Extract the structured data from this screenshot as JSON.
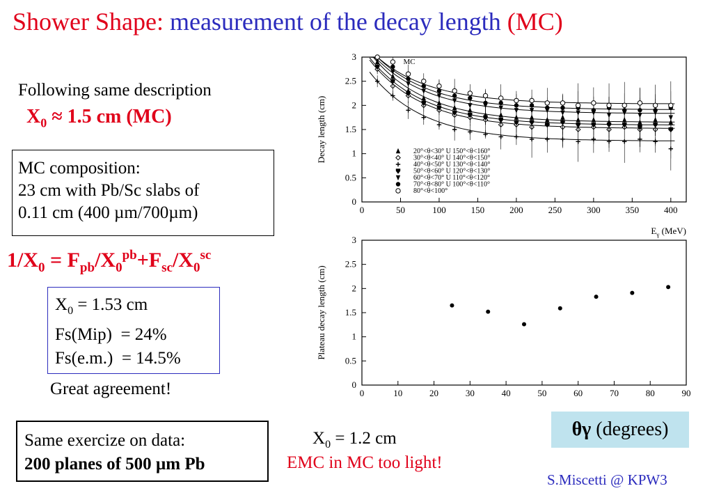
{
  "title": {
    "part1": "Shower Shape:",
    "part2": "measurement of the decay length",
    "part3": "(MC)"
  },
  "description": {
    "line1": "Following same description",
    "result_base": "X",
    "result_sub": "0",
    "result_rest": " ≈ 1.5 cm (MC)"
  },
  "composition": {
    "line1": "MC composition:",
    "line2": "23 cm with Pb/Sc slabs of",
    "line3": "0.11 cm (400 µm/700µm)"
  },
  "formula": {
    "a": "1/X",
    "a_sub": "0",
    "b": " = F",
    "b_sub": "pb",
    "c": "/X",
    "c_sub": "0",
    "c_sup": "pb",
    "d": "+F",
    "d_sub": "sc",
    "e": "/X",
    "e_sub": "0",
    "e_sup": "sc"
  },
  "values": {
    "x0_base": "X",
    "x0_sub": "0",
    "x0_rest": " = 1.53 cm",
    "fs_mip": "Fs(Mip)  = 24%",
    "fs_em": "Fs(e.m.)  = 14.5%"
  },
  "agreement": "Great agreement!",
  "data_box": {
    "line1": "Same exercize on data:",
    "line2": "200 planes of 500 µm Pb"
  },
  "data_result": {
    "x0_base": "X",
    "x0_sub": "0",
    "x0_rest": " = 1.2 cm",
    "emc": "EMC in MC too light!"
  },
  "theta_label": {
    "symbol": "θγ",
    "text": " (degrees)"
  },
  "credit": "S.Miscetti @ KPW3",
  "chart_data": [
    {
      "type": "scatter",
      "xlabel": "E",
      "xlabel_sub": "γ",
      "xlabel_unit": " (MeV)",
      "ylabel": "Decay length (cm)",
      "corner_label": "MC",
      "xlim": [
        0,
        420
      ],
      "ylim": [
        0,
        3
      ],
      "xticks": [
        0,
        50,
        100,
        150,
        200,
        250,
        300,
        350,
        400
      ],
      "yticks": [
        0,
        0.5,
        1,
        1.5,
        2,
        2.5,
        3
      ],
      "legend_position": "bottom-left",
      "x": [
        20,
        40,
        60,
        80,
        100,
        120,
        140,
        160,
        180,
        200,
        220,
        240,
        260,
        280,
        300,
        320,
        340,
        360,
        380,
        400
      ],
      "series": [
        {
          "name": "20°<θ<30° U 150°<θ<160°",
          "plateau": 1.65,
          "marker": "triangle-up",
          "values": [
            2.9,
            2.6,
            2.3,
            2.15,
            2.05,
            1.95,
            1.9,
            1.8,
            1.8,
            1.75,
            1.75,
            1.7,
            1.75,
            1.7,
            1.7,
            1.65,
            1.7,
            1.65,
            1.7,
            1.65
          ]
        },
        {
          "name": "30°<θ<40° U 140°<θ<150°",
          "plateau": 1.52,
          "marker": "diamond-open",
          "values": [
            2.75,
            2.4,
            2.2,
            2.0,
            1.9,
            1.8,
            1.75,
            1.7,
            1.6,
            1.6,
            1.55,
            1.6,
            1.55,
            1.5,
            1.55,
            1.5,
            1.55,
            1.5,
            1.5,
            1.5
          ]
        },
        {
          "name": "40°<θ<50° U 130°<θ<140°",
          "plateau": 1.26,
          "marker": "cross",
          "values": [
            2.5,
            2.2,
            1.9,
            1.75,
            1.6,
            1.5,
            1.45,
            1.4,
            1.35,
            1.35,
            1.3,
            1.3,
            1.3,
            1.25,
            1.3,
            1.25,
            1.25,
            1.3,
            1.25,
            1.1
          ]
        },
        {
          "name": "50°<θ<60° U 120°<θ<130°",
          "plateau": 1.59,
          "marker": "shield",
          "values": [
            2.8,
            2.5,
            2.25,
            2.05,
            1.95,
            1.85,
            1.8,
            1.75,
            1.7,
            1.65,
            1.65,
            1.6,
            1.65,
            1.6,
            1.6,
            1.6,
            1.6,
            1.55,
            1.6,
            1.5
          ]
        },
        {
          "name": "60°<θ<70° U 110°<θ<120°",
          "plateau": 1.83,
          "marker": "triangle-down",
          "values": [
            2.95,
            2.7,
            2.45,
            2.3,
            2.2,
            2.1,
            2.0,
            2.0,
            1.95,
            1.9,
            1.9,
            1.9,
            1.85,
            1.85,
            1.85,
            1.8,
            1.85,
            1.8,
            1.85,
            1.75
          ]
        },
        {
          "name": "70°<θ<80° U 100°<θ<110°",
          "plateau": 1.91,
          "marker": "circle",
          "values": [
            3.0,
            2.8,
            2.55,
            2.4,
            2.3,
            2.2,
            2.15,
            2.05,
            2.05,
            2.0,
            2.0,
            1.95,
            1.95,
            1.95,
            1.9,
            1.95,
            1.9,
            1.9,
            1.9,
            1.95
          ]
        },
        {
          "name": "80°<θ<100°",
          "plateau": 2.03,
          "marker": "circle-open",
          "values": [
            3.0,
            2.9,
            2.65,
            2.5,
            2.4,
            2.3,
            2.25,
            2.2,
            2.15,
            2.1,
            2.1,
            2.05,
            2.05,
            2.0,
            2.05,
            2.0,
            2.0,
            2.05,
            2.0,
            2.0
          ]
        }
      ]
    },
    {
      "type": "scatter",
      "ylabel": "Plateau decay length (cm)",
      "xlim": [
        0,
        90
      ],
      "ylim": [
        0,
        3
      ],
      "xticks": [
        0,
        10,
        20,
        30,
        40,
        50,
        60,
        70,
        80,
        90
      ],
      "yticks": [
        0,
        0.5,
        1,
        1.5,
        2,
        2.5,
        3
      ],
      "x": [
        25,
        35,
        45,
        55,
        65,
        75,
        85
      ],
      "values": [
        1.65,
        1.52,
        1.26,
        1.59,
        1.83,
        1.91,
        2.03
      ]
    }
  ]
}
